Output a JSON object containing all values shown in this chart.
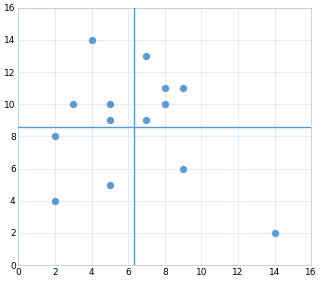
{
  "points": [
    [
      2,
      8
    ],
    [
      2,
      4
    ],
    [
      3,
      10
    ],
    [
      4,
      14
    ],
    [
      5,
      9
    ],
    [
      5,
      10
    ],
    [
      5,
      5
    ],
    [
      7,
      13
    ],
    [
      7,
      9
    ],
    [
      8,
      11
    ],
    [
      8,
      10
    ],
    [
      9,
      11
    ],
    [
      9,
      6
    ],
    [
      14,
      2
    ]
  ],
  "vline_x": 6.3,
  "hline_y": 8.6,
  "xlim": [
    0,
    16
  ],
  "ylim": [
    0,
    16
  ],
  "xticks": [
    0,
    2,
    4,
    6,
    8,
    10,
    12,
    14,
    16
  ],
  "yticks": [
    0,
    2,
    4,
    6,
    8,
    10,
    12,
    14,
    16
  ],
  "dot_color": "#5B9BD5",
  "line_color": "#5B9BD5",
  "bg_color": "#ffffff",
  "grid_color": "#e0e8f0",
  "dot_size": 18,
  "tick_fontsize": 6.5,
  "line_width": 1.0
}
